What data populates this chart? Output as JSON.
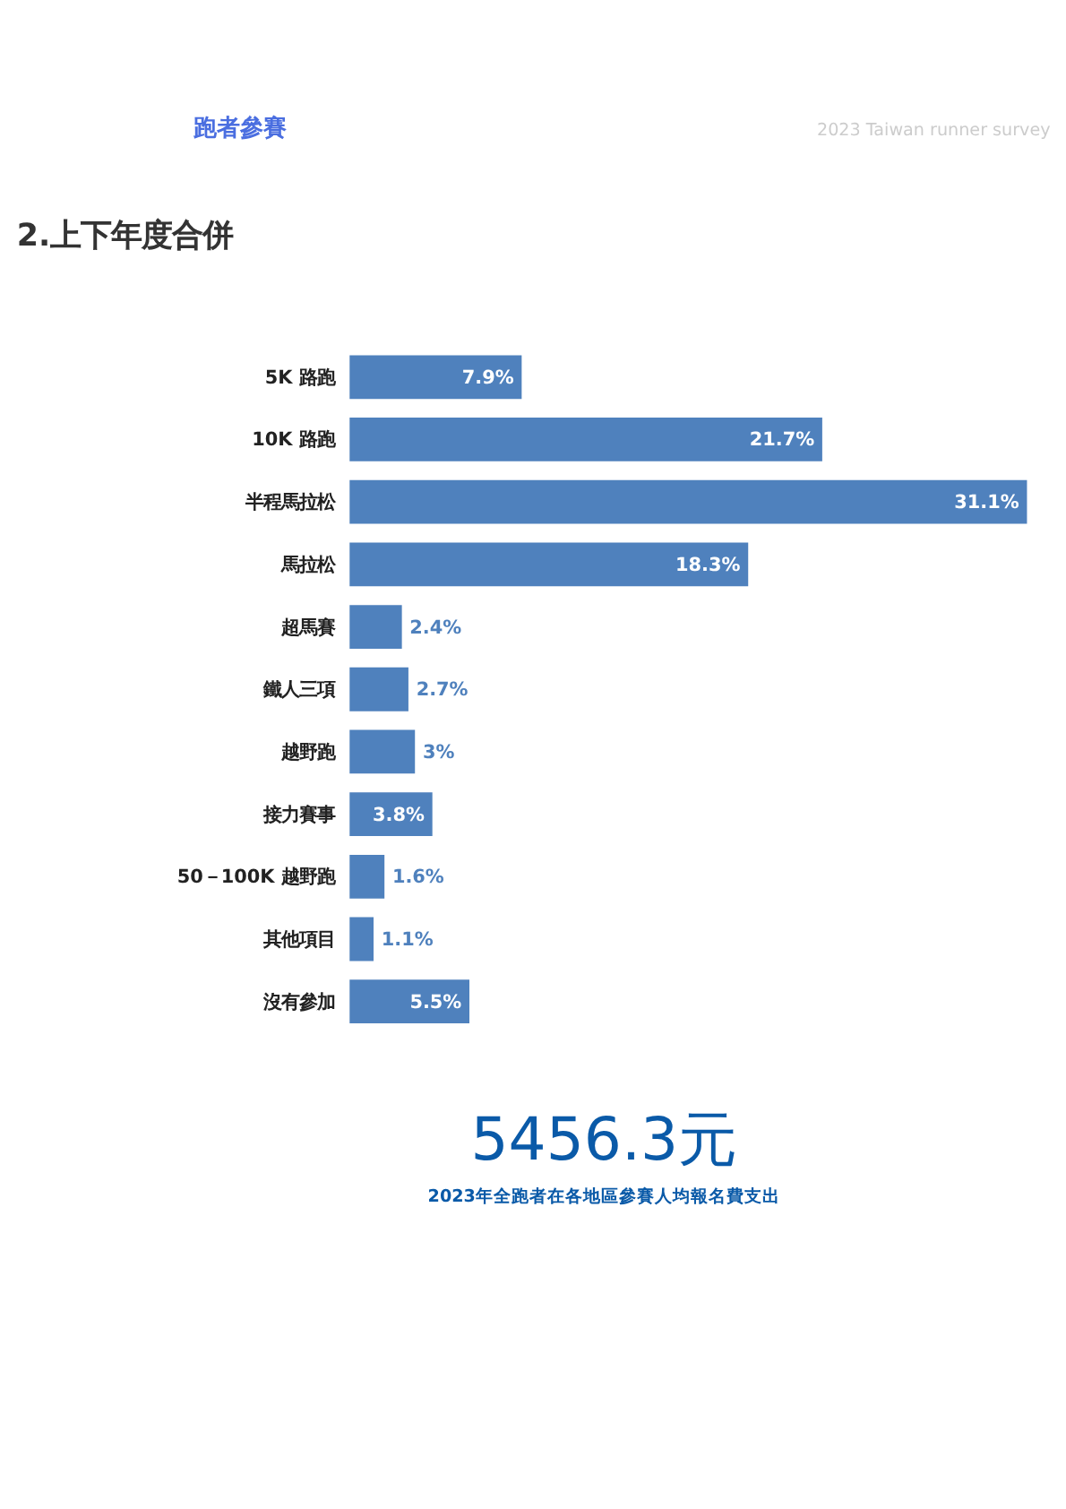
{
  "chart_data": {
    "type": "bar",
    "orientation": "horizontal",
    "title": "2.上下年度合併",
    "categories": [
      "5K 路跑",
      "10K 路跑",
      "半程馬拉松",
      "馬拉松",
      "超馬賽",
      "鐵人三項",
      "越野跑",
      "接力賽事",
      "50－100K 越野跑",
      "其他項目",
      "沒有參加"
    ],
    "values": [
      7.9,
      21.7,
      31.1,
      18.3,
      2.4,
      2.7,
      3,
      3.8,
      1.6,
      1.1,
      5.5
    ],
    "value_labels": [
      "7.9%",
      "21.7%",
      "31.1%",
      "18.3%",
      "2.4%",
      "2.7%",
      "3%",
      "3.8%",
      "1.6%",
      "1.1%",
      "5.5%"
    ],
    "color": "#4f81bd",
    "annotations": [
      "跑者參賽",
      "2023 Taiwan runner survey",
      "5456.3元",
      "2023年全跑者在各地區參賽人均報名費支出"
    ]
  }
}
